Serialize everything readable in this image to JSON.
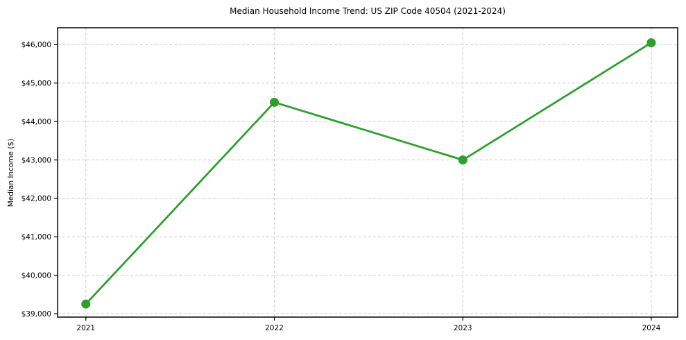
{
  "chart_data": {
    "type": "line",
    "title": "Median Household Income Trend: US ZIP Code 40504 (2021-2024)",
    "xlabel": "",
    "ylabel": "Median Income ($)",
    "x": [
      2021,
      2022,
      2023,
      2024
    ],
    "x_tick_labels": [
      "2021",
      "2022",
      "2023",
      "2024"
    ],
    "series": [
      {
        "name": "Median Household Income",
        "values": [
          39250,
          44500,
          43000,
          46050
        ]
      }
    ],
    "y_ticks": [
      39000,
      40000,
      41000,
      42000,
      43000,
      44000,
      45000,
      46000
    ],
    "y_tick_labels": [
      "$39,000",
      "$40,000",
      "$41,000",
      "$42,000",
      "$43,000",
      "$44,000",
      "$45,000",
      "$46,000"
    ],
    "xlim": [
      2020.85,
      2024.14
    ],
    "ylim": [
      38910,
      46440
    ],
    "grid": true,
    "grid_style": "dashed",
    "legend": false,
    "colors": {
      "line": "#2ca02c",
      "marker": "#2ca02c",
      "grid": "#cccccc",
      "spine": "#000000",
      "text": "#000000",
      "background": "#ffffff"
    }
  }
}
